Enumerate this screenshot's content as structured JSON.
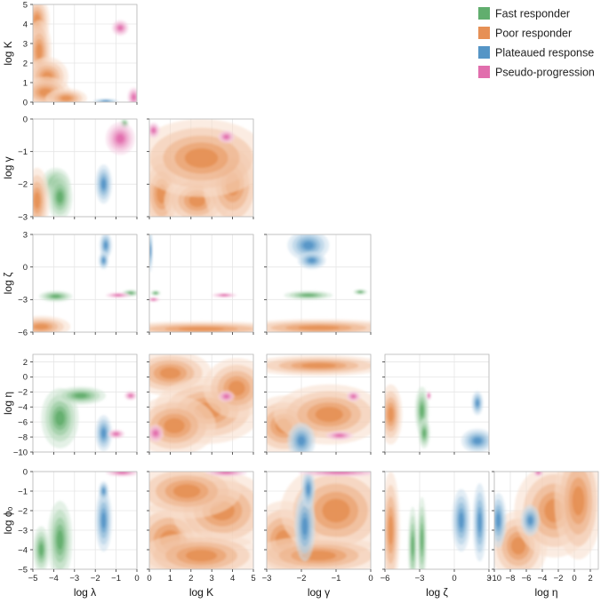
{
  "chart_data": {
    "type": "pair-plot-density",
    "title": "",
    "variables": [
      {
        "key": "lambda",
        "label": "log λ",
        "range": [
          -5,
          0
        ],
        "ticks": [
          -5,
          -4,
          -3,
          -2,
          -1,
          0
        ]
      },
      {
        "key": "K",
        "label": "log K",
        "range": [
          0,
          5
        ],
        "ticks": [
          0,
          1,
          2,
          3,
          4,
          5
        ]
      },
      {
        "key": "gamma",
        "label": "log γ",
        "range": [
          -3,
          0
        ],
        "ticks": [
          -3,
          -2,
          -1,
          0
        ]
      },
      {
        "key": "zeta",
        "label": "log ζ",
        "range": [
          -6,
          3
        ],
        "ticks": [
          -6,
          -3,
          0,
          3
        ]
      },
      {
        "key": "eta",
        "label": "log η",
        "range": [
          -10,
          3
        ],
        "ticks": [
          -10,
          -8,
          -6,
          -4,
          -2,
          0,
          2
        ]
      },
      {
        "key": "phi0",
        "label": "log ϕ₀",
        "range": [
          -5,
          0
        ],
        "ticks": [
          -5,
          -4,
          -3,
          -2,
          -1,
          0
        ]
      }
    ],
    "legend": {
      "position": "top-right",
      "entries": [
        {
          "name": "Fast responder",
          "color": "#3a9a4a"
        },
        {
          "name": "Poor responder",
          "color": "#e0742a"
        },
        {
          "name": "Plateaued response",
          "color": "#2a7ab8"
        },
        {
          "name": "Pseudo-progression",
          "color": "#d94a98"
        }
      ]
    },
    "grid": true,
    "panels": [
      {
        "row": 1,
        "col": 0,
        "x": "lambda",
        "y": "K",
        "blobs": [
          {
            "group": "Poor responder",
            "cx": -4.8,
            "cy": 4.2,
            "sx": 0.3,
            "sy": 0.6
          },
          {
            "group": "Poor responder",
            "cx": -4.7,
            "cy": 2.6,
            "sx": 0.3,
            "sy": 0.8
          },
          {
            "group": "Poor responder",
            "cx": -4.3,
            "cy": 1.3,
            "sx": 0.5,
            "sy": 0.5
          },
          {
            "group": "Poor responder",
            "cx": -4.4,
            "cy": 0.5,
            "sx": 0.6,
            "sy": 0.4
          },
          {
            "group": "Poor responder",
            "cx": -3.4,
            "cy": 0.2,
            "sx": 0.5,
            "sy": 0.25
          },
          {
            "group": "Pseudo-progression",
            "cx": -0.8,
            "cy": 3.8,
            "sx": 0.2,
            "sy": 0.2
          },
          {
            "group": "Pseudo-progression",
            "cx": -0.15,
            "cy": 0.25,
            "sx": 0.15,
            "sy": 0.25
          },
          {
            "group": "Plateaued response",
            "cx": -1.5,
            "cy": 0.05,
            "sx": 0.3,
            "sy": 0.06
          }
        ]
      },
      {
        "row": 2,
        "col": 0,
        "x": "lambda",
        "y": "gamma",
        "blobs": [
          {
            "group": "Fast responder",
            "cx": -3.9,
            "cy": -2.0,
            "sx": 0.35,
            "sy": 0.25
          },
          {
            "group": "Fast responder",
            "cx": -3.7,
            "cy": -2.4,
            "sx": 0.3,
            "sy": 0.35
          },
          {
            "group": "Fast responder",
            "cx": -0.6,
            "cy": -0.15,
            "sx": 0.1,
            "sy": 0.08
          },
          {
            "group": "Poor responder",
            "cx": -4.8,
            "cy": -2.5,
            "sx": 0.3,
            "sy": 0.5
          },
          {
            "group": "Plateaued response",
            "cx": -1.6,
            "cy": -2.0,
            "sx": 0.2,
            "sy": 0.3
          },
          {
            "group": "Pseudo-progression",
            "cx": -0.8,
            "cy": -0.6,
            "sx": 0.35,
            "sy": 0.25
          }
        ]
      },
      {
        "row": 2,
        "col": 1,
        "x": "K",
        "y": "gamma",
        "blobs": [
          {
            "group": "Poor responder",
            "cx": 0.6,
            "cy": -2.3,
            "sx": 0.5,
            "sy": 0.6
          },
          {
            "group": "Poor responder",
            "cx": 2.3,
            "cy": -2.5,
            "sx": 0.8,
            "sy": 0.4
          },
          {
            "group": "Poor responder",
            "cx": 4.0,
            "cy": -2.0,
            "sx": 0.7,
            "sy": 0.7
          },
          {
            "group": "Poor responder",
            "cx": 2.5,
            "cy": -1.2,
            "sx": 1.6,
            "sy": 0.6
          },
          {
            "group": "Pseudo-progression",
            "cx": 0.2,
            "cy": -0.35,
            "sx": 0.15,
            "sy": 0.12
          },
          {
            "group": "Pseudo-progression",
            "cx": 3.7,
            "cy": -0.55,
            "sx": 0.2,
            "sy": 0.1
          }
        ]
      },
      {
        "row": 3,
        "col": 0,
        "x": "lambda",
        "y": "zeta",
        "blobs": [
          {
            "group": "Plateaued response",
            "cx": -1.5,
            "cy": 2.0,
            "sx": 0.15,
            "sy": 0.6
          },
          {
            "group": "Plateaued response",
            "cx": -1.6,
            "cy": 0.6,
            "sx": 0.12,
            "sy": 0.4
          },
          {
            "group": "Fast responder",
            "cx": -3.9,
            "cy": -2.7,
            "sx": 0.4,
            "sy": 0.25
          },
          {
            "group": "Fast responder",
            "cx": -0.3,
            "cy": -2.4,
            "sx": 0.2,
            "sy": 0.15
          },
          {
            "group": "Pseudo-progression",
            "cx": -0.9,
            "cy": -2.6,
            "sx": 0.3,
            "sy": 0.12
          },
          {
            "group": "Poor responder",
            "cx": -4.6,
            "cy": -5.5,
            "sx": 0.7,
            "sy": 0.5
          }
        ]
      },
      {
        "row": 3,
        "col": 1,
        "x": "K",
        "y": "zeta",
        "blobs": [
          {
            "group": "Poor responder",
            "cx": 2.5,
            "cy": -5.7,
            "sx": 2.2,
            "sy": 0.35
          },
          {
            "group": "Fast responder",
            "cx": 0.3,
            "cy": -2.4,
            "sx": 0.12,
            "sy": 0.12
          },
          {
            "group": "Pseudo-progression",
            "cx": 0.2,
            "cy": -3.0,
            "sx": 0.15,
            "sy": 0.1
          },
          {
            "group": "Pseudo-progression",
            "cx": 3.6,
            "cy": -2.6,
            "sx": 0.3,
            "sy": 0.1
          },
          {
            "group": "Plateaued response",
            "cx": 0.05,
            "cy": 1.5,
            "sx": 0.05,
            "sy": 1.0
          }
        ]
      },
      {
        "row": 3,
        "col": 2,
        "x": "gamma",
        "y": "zeta",
        "blobs": [
          {
            "group": "Plateaued response",
            "cx": -1.8,
            "cy": 2.0,
            "sx": 0.3,
            "sy": 0.7
          },
          {
            "group": "Plateaued response",
            "cx": -1.7,
            "cy": 0.6,
            "sx": 0.2,
            "sy": 0.4
          },
          {
            "group": "Fast responder",
            "cx": -1.8,
            "cy": -2.6,
            "sx": 0.35,
            "sy": 0.2
          },
          {
            "group": "Fast responder",
            "cx": -0.3,
            "cy": -2.3,
            "sx": 0.1,
            "sy": 0.12
          },
          {
            "group": "Poor responder",
            "cx": -1.5,
            "cy": -5.6,
            "sx": 1.2,
            "sy": 0.4
          }
        ]
      },
      {
        "row": 4,
        "col": 0,
        "x": "lambda",
        "y": "eta",
        "blobs": [
          {
            "group": "Fast responder",
            "cx": -3.7,
            "cy": -5.5,
            "sx": 0.45,
            "sy": 2.0
          },
          {
            "group": "Fast responder",
            "cx": -2.7,
            "cy": -2.5,
            "sx": 0.6,
            "sy": 0.6
          },
          {
            "group": "Plateaued response",
            "cx": -1.6,
            "cy": -7.5,
            "sx": 0.2,
            "sy": 1.2
          },
          {
            "group": "Pseudo-progression",
            "cx": -0.3,
            "cy": -2.5,
            "sx": 0.15,
            "sy": 0.3
          },
          {
            "group": "Pseudo-progression",
            "cx": -1.0,
            "cy": -7.6,
            "sx": 0.2,
            "sy": 0.3
          }
        ]
      },
      {
        "row": 4,
        "col": 1,
        "x": "K",
        "y": "eta",
        "blobs": [
          {
            "group": "Poor responder",
            "cx": 1.0,
            "cy": 0.5,
            "sx": 1.0,
            "sy": 1.5
          },
          {
            "group": "Poor responder",
            "cx": 2.8,
            "cy": -4.5,
            "sx": 1.3,
            "sy": 2.2
          },
          {
            "group": "Poor responder",
            "cx": 4.2,
            "cy": -1.5,
            "sx": 0.8,
            "sy": 2.0
          },
          {
            "group": "Poor responder",
            "cx": 1.2,
            "cy": -6.5,
            "sx": 1.0,
            "sy": 2.0
          },
          {
            "group": "Pseudo-progression",
            "cx": 3.7,
            "cy": -2.6,
            "sx": 0.2,
            "sy": 0.4
          },
          {
            "group": "Pseudo-progression",
            "cx": 0.3,
            "cy": -7.5,
            "sx": 0.2,
            "sy": 0.6
          }
        ]
      },
      {
        "row": 4,
        "col": 2,
        "x": "gamma",
        "y": "eta",
        "blobs": [
          {
            "group": "Poor responder",
            "cx": -2.5,
            "cy": -6.5,
            "sx": 0.5,
            "sy": 2.0
          },
          {
            "group": "Poor responder",
            "cx": -1.2,
            "cy": -5.0,
            "sx": 0.8,
            "sy": 2.0
          },
          {
            "group": "Poor responder",
            "cx": -1.5,
            "cy": 1.5,
            "sx": 1.0,
            "sy": 0.7
          },
          {
            "group": "Plateaued response",
            "cx": -2.0,
            "cy": -8.5,
            "sx": 0.2,
            "sy": 1.2
          },
          {
            "group": "Pseudo-progression",
            "cx": -0.5,
            "cy": -2.6,
            "sx": 0.1,
            "sy": 0.35
          },
          {
            "group": "Pseudo-progression",
            "cx": -0.9,
            "cy": -7.8,
            "sx": 0.2,
            "sy": 0.3
          }
        ]
      },
      {
        "row": 4,
        "col": 3,
        "x": "zeta",
        "y": "eta",
        "blobs": [
          {
            "group": "Poor responder",
            "cx": -5.5,
            "cy": -5.0,
            "sx": 0.5,
            "sy": 2.0
          },
          {
            "group": "Fast responder",
            "cx": -2.8,
            "cy": -4.5,
            "sx": 0.3,
            "sy": 1.6
          },
          {
            "group": "Fast responder",
            "cx": -2.6,
            "cy": -7.5,
            "sx": 0.25,
            "sy": 1.0
          },
          {
            "group": "Plateaued response",
            "cx": 2.0,
            "cy": -8.5,
            "sx": 0.7,
            "sy": 0.8
          },
          {
            "group": "Plateaued response",
            "cx": 2.0,
            "cy": -3.5,
            "sx": 0.25,
            "sy": 0.8
          },
          {
            "group": "Pseudo-progression",
            "cx": -2.2,
            "cy": -2.5,
            "sx": 0.1,
            "sy": 0.3
          }
        ]
      },
      {
        "row": 5,
        "col": 0,
        "x": "lambda",
        "y": "phi0",
        "blobs": [
          {
            "group": "Fast responder",
            "cx": -3.7,
            "cy": -3.5,
            "sx": 0.3,
            "sy": 1.0
          },
          {
            "group": "Fast responder",
            "cx": -4.6,
            "cy": -4.0,
            "sx": 0.2,
            "sy": 0.6
          },
          {
            "group": "Plateaued response",
            "cx": -1.6,
            "cy": -2.5,
            "sx": 0.2,
            "sy": 0.8
          },
          {
            "group": "Pseudo-progression",
            "cx": -0.7,
            "cy": -0.05,
            "sx": 0.4,
            "sy": 0.1
          },
          {
            "group": "Plateaued response",
            "cx": -1.6,
            "cy": -1.0,
            "sx": 0.12,
            "sy": 0.25
          }
        ]
      },
      {
        "row": 5,
        "col": 1,
        "x": "K",
        "y": "phi0",
        "blobs": [
          {
            "group": "Poor responder",
            "cx": 1.0,
            "cy": -3.5,
            "sx": 1.0,
            "sy": 1.0
          },
          {
            "group": "Poor responder",
            "cx": 3.5,
            "cy": -2.0,
            "sx": 1.2,
            "sy": 1.0
          },
          {
            "group": "Poor responder",
            "cx": 2.5,
            "cy": -4.3,
            "sx": 1.5,
            "sy": 0.6
          },
          {
            "group": "Poor responder",
            "cx": 1.8,
            "cy": -1.0,
            "sx": 1.3,
            "sy": 0.7
          },
          {
            "group": "Pseudo-progression",
            "cx": 3.7,
            "cy": -0.05,
            "sx": 0.5,
            "sy": 0.1
          }
        ]
      },
      {
        "row": 5,
        "col": 2,
        "x": "gamma",
        "y": "phi0",
        "blobs": [
          {
            "group": "Poor responder",
            "cx": -2.5,
            "cy": -3.5,
            "sx": 0.5,
            "sy": 1.0
          },
          {
            "group": "Poor responder",
            "cx": -1.0,
            "cy": -2.0,
            "sx": 0.8,
            "sy": 1.2
          },
          {
            "group": "Poor responder",
            "cx": -1.5,
            "cy": -4.3,
            "sx": 1.0,
            "sy": 0.5
          },
          {
            "group": "Plateaued response",
            "cx": -1.9,
            "cy": -2.8,
            "sx": 0.15,
            "sy": 0.9
          },
          {
            "group": "Plateaued response",
            "cx": -1.8,
            "cy": -0.9,
            "sx": 0.1,
            "sy": 0.5
          },
          {
            "group": "Pseudo-progression",
            "cx": -0.9,
            "cy": -0.05,
            "sx": 0.6,
            "sy": 0.1
          }
        ]
      },
      {
        "row": 5,
        "col": 3,
        "x": "zeta",
        "y": "phi0",
        "blobs": [
          {
            "group": "Poor responder",
            "cx": -5.5,
            "cy": -3.0,
            "sx": 0.4,
            "sy": 1.5
          },
          {
            "group": "Fast responder",
            "cx": -3.6,
            "cy": -3.8,
            "sx": 0.2,
            "sy": 1.0
          },
          {
            "group": "Fast responder",
            "cx": -2.8,
            "cy": -3.5,
            "sx": 0.2,
            "sy": 1.1
          },
          {
            "group": "Plateaued response",
            "cx": 0.6,
            "cy": -2.5,
            "sx": 0.4,
            "sy": 0.8
          },
          {
            "group": "Plateaued response",
            "cx": 2.2,
            "cy": -2.6,
            "sx": 0.3,
            "sy": 1.0
          }
        ]
      },
      {
        "row": 5,
        "col": 4,
        "x": "eta",
        "y": "phi0",
        "blobs": [
          {
            "group": "Poor responder",
            "cx": -7.0,
            "cy": -3.8,
            "sx": 1.8,
            "sy": 0.9
          },
          {
            "group": "Poor responder",
            "cx": -2.5,
            "cy": -2.0,
            "sx": 2.5,
            "sy": 1.2
          },
          {
            "group": "Poor responder",
            "cx": 0.5,
            "cy": -1.5,
            "sx": 1.5,
            "sy": 1.5
          },
          {
            "group": "Plateaued response",
            "cx": -9.5,
            "cy": -2.5,
            "sx": 0.5,
            "sy": 0.7
          },
          {
            "group": "Plateaued response",
            "cx": -5.5,
            "cy": -2.5,
            "sx": 0.6,
            "sy": 0.4
          },
          {
            "group": "Pseudo-progression",
            "cx": -4.5,
            "cy": -0.05,
            "sx": 0.3,
            "sy": 0.1
          }
        ]
      }
    ]
  }
}
